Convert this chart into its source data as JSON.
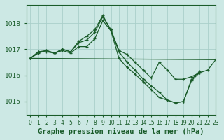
{
  "background_color": "#cce8e4",
  "grid_color": "#aacfca",
  "line_color": "#1a5c2a",
  "xlabel": "Graphe pression niveau de la mer (hPa)",
  "xlim": [
    -0.5,
    23
  ],
  "ylim": [
    1014.5,
    1018.7
  ],
  "yticks": [
    1015,
    1016,
    1017,
    1018
  ],
  "xticks": [
    0,
    1,
    2,
    3,
    4,
    5,
    6,
    7,
    8,
    9,
    10,
    11,
    12,
    13,
    14,
    15,
    16,
    17,
    18,
    19,
    20,
    21,
    22,
    23
  ],
  "series": [
    {
      "x": [
        0,
        1,
        2,
        3,
        4,
        5,
        6,
        7,
        8,
        9,
        10,
        11,
        12,
        13,
        14,
        15,
        16,
        17,
        18,
        19,
        20,
        21,
        22,
        23
      ],
      "y": [
        1016.65,
        1016.9,
        1016.95,
        1016.85,
        1017.0,
        1016.9,
        1017.25,
        1017.35,
        1017.65,
        1018.25,
        1017.75,
        1016.95,
        1016.8,
        1016.5,
        1016.2,
        1015.9,
        1016.5,
        1016.2,
        1015.85,
        1015.85,
        1015.95,
        1016.1,
        1016.2,
        1016.6
      ]
    },
    {
      "x": [
        0,
        1,
        2,
        3,
        4,
        5,
        6,
        7,
        8,
        9,
        10,
        11,
        12,
        13,
        14,
        15,
        16,
        17,
        18,
        19,
        20,
        21
      ],
      "y": [
        1016.65,
        1016.9,
        1016.9,
        1016.85,
        1017.0,
        1016.9,
        1017.3,
        1017.5,
        1017.75,
        1018.3,
        1017.7,
        1016.9,
        1016.5,
        1016.2,
        1015.85,
        1015.6,
        1015.35,
        1015.05,
        1014.95,
        1015.0,
        1015.8,
        1016.1
      ]
    },
    {
      "x": [
        0,
        1,
        2,
        3,
        4,
        5,
        6,
        7,
        8,
        9,
        10,
        11,
        12,
        13,
        14,
        15,
        16,
        17,
        18,
        19,
        20,
        21
      ],
      "y": [
        1016.65,
        1016.85,
        1016.95,
        1016.85,
        1016.95,
        1016.85,
        1017.1,
        1017.1,
        1017.4,
        1018.1,
        1017.7,
        1016.65,
        1016.3,
        1016.05,
        1015.75,
        1015.45,
        1015.15,
        1015.05,
        1014.95,
        1015.0,
        1015.85,
        1016.15
      ]
    },
    {
      "x": [
        0,
        23
      ],
      "y": [
        1016.65,
        1016.6
      ],
      "no_marker": true
    }
  ]
}
